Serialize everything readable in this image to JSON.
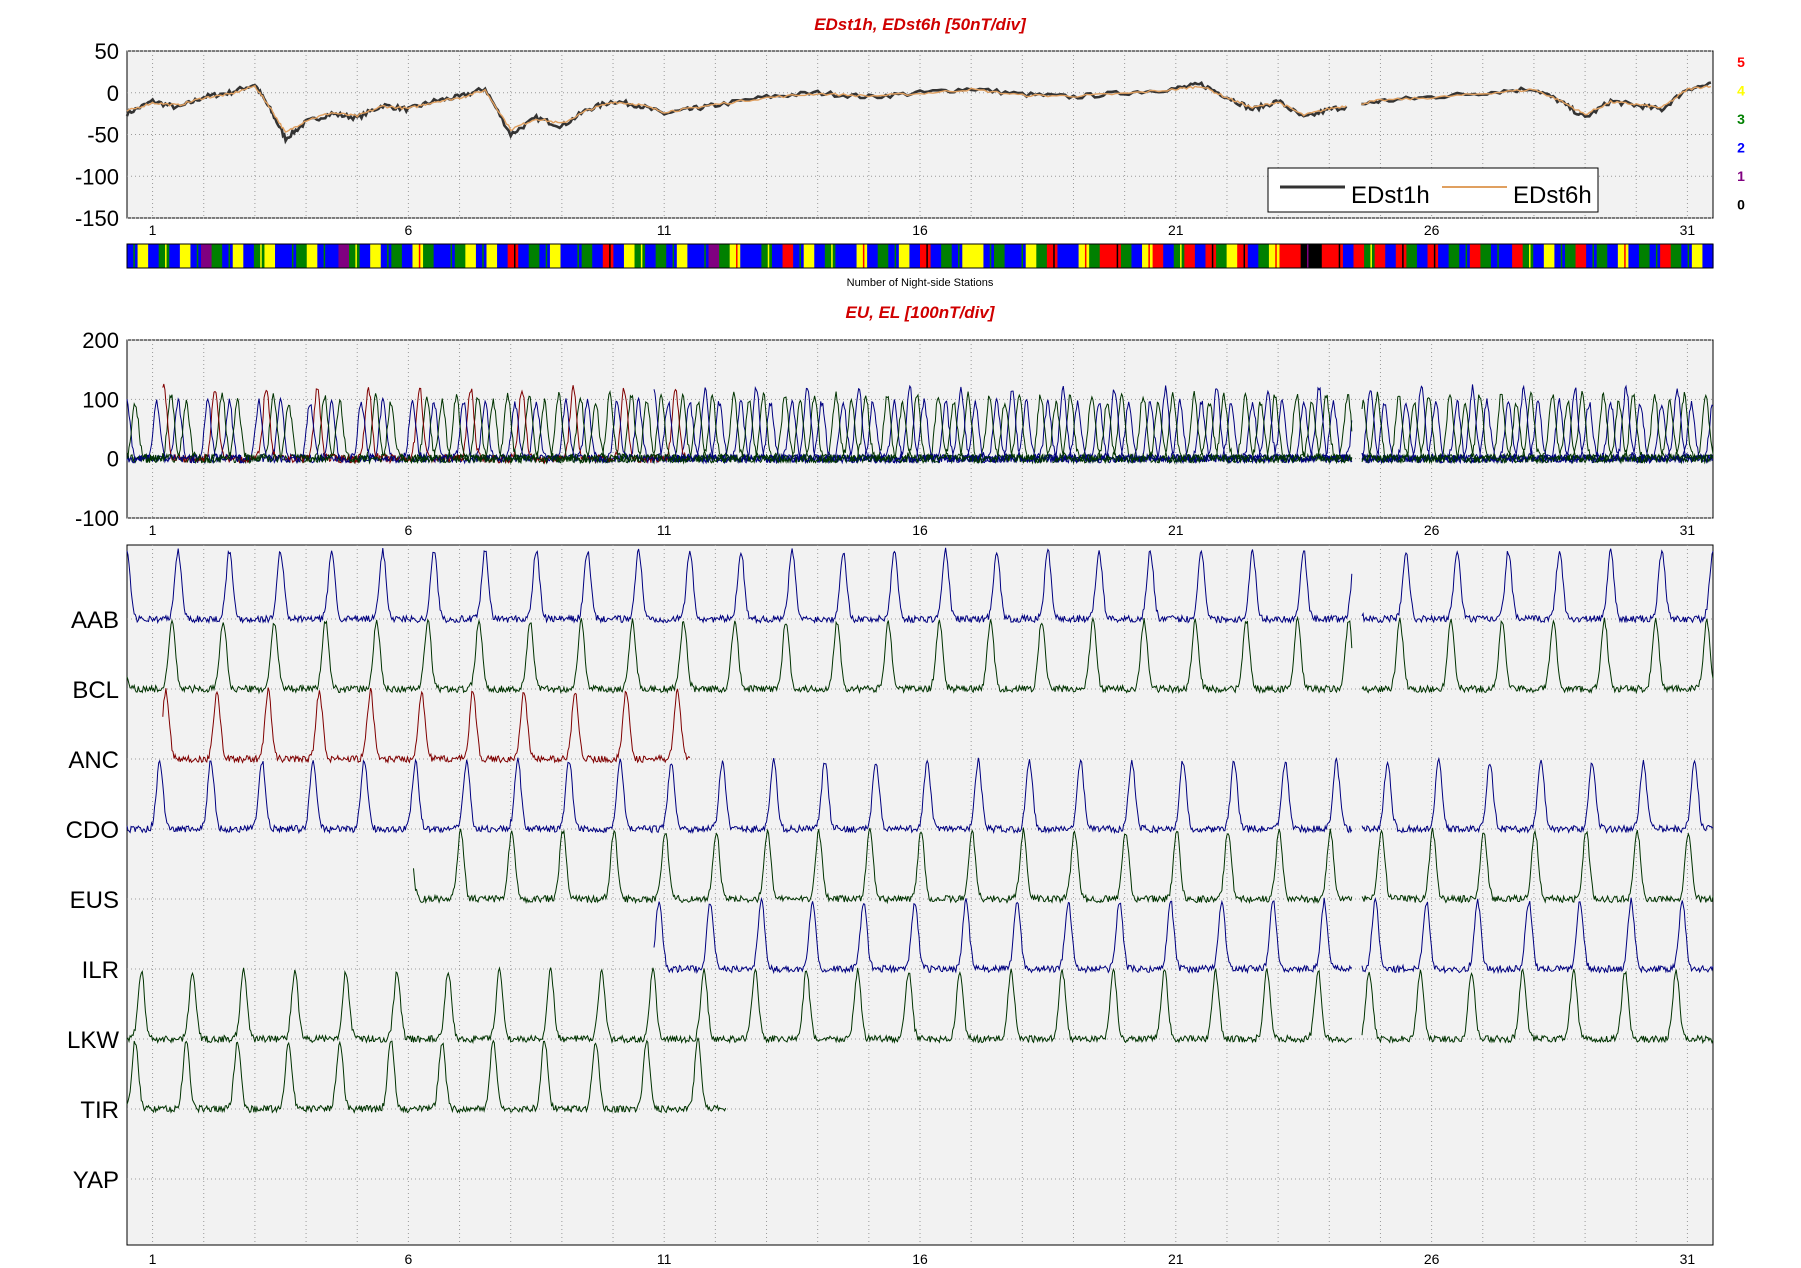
{
  "chart_data": [
    {
      "type": "line",
      "title": "EDst1h, EDst6h [50nT/div]",
      "ylim": [
        -150,
        50
      ],
      "yticks": [
        50,
        0,
        -50,
        -100,
        -150
      ],
      "xticks": [
        1,
        6,
        11,
        16,
        21,
        26,
        31
      ],
      "xlim": [
        0.5,
        31.5
      ],
      "grid": true,
      "legend": {
        "position": "bottom-right",
        "entries": [
          "EDst1h",
          "EDst6h"
        ]
      },
      "series": [
        {
          "name": "EDst1h",
          "color": "#333333",
          "x": [
            0.5,
            1,
            1.5,
            2,
            2.5,
            3,
            3.3,
            3.6,
            4,
            4.5,
            5,
            5.5,
            6,
            6.5,
            7,
            7.5,
            8,
            8.5,
            9,
            9.5,
            10,
            10.5,
            11,
            11.5,
            12,
            13,
            14,
            15,
            16,
            17,
            18,
            19,
            20,
            21,
            21.5,
            22,
            22.5,
            23,
            23.5,
            24,
            24.5,
            25,
            26,
            27,
            28,
            28.5,
            29,
            29.5,
            30,
            30.5,
            31,
            31.5
          ],
          "y": [
            -25,
            -10,
            -18,
            -5,
            0,
            10,
            -20,
            -55,
            -35,
            -25,
            -30,
            -15,
            -20,
            -10,
            -5,
            5,
            -50,
            -30,
            -40,
            -20,
            -10,
            -15,
            -25,
            -20,
            -15,
            -5,
            0,
            -5,
            0,
            5,
            -2,
            -5,
            0,
            5,
            10,
            -5,
            -20,
            -10,
            -30,
            -20,
            -15,
            -10,
            -5,
            0,
            5,
            -10,
            -30,
            -10,
            -15,
            -20,
            5,
            10
          ]
        },
        {
          "name": "EDst6h",
          "color": "#e0a060",
          "x": [
            0.5,
            1,
            1.5,
            2,
            2.5,
            3,
            3.3,
            3.6,
            4,
            4.5,
            5,
            5.5,
            6,
            6.5,
            7,
            7.5,
            8,
            8.5,
            9,
            9.5,
            10,
            10.5,
            11,
            11.5,
            12,
            13,
            14,
            15,
            16,
            17,
            18,
            19,
            20,
            21,
            21.5,
            22,
            22.5,
            23,
            23.5,
            24,
            24.5,
            25,
            26,
            27,
            28,
            28.5,
            29,
            29.5,
            30,
            30.5,
            31,
            31.5
          ],
          "y": [
            -22,
            -12,
            -15,
            -6,
            -2,
            8,
            -18,
            -48,
            -33,
            -24,
            -28,
            -16,
            -19,
            -11,
            -6,
            3,
            -44,
            -31,
            -37,
            -21,
            -11,
            -14,
            -23,
            -19,
            -14,
            -6,
            -1,
            -4,
            -1,
            4,
            -3,
            -4,
            -1,
            4,
            8,
            -6,
            -18,
            -11,
            -27,
            -19,
            -14,
            -9,
            -6,
            -1,
            4,
            -9,
            -26,
            -11,
            -14,
            -18,
            4,
            9
          ]
        }
      ]
    },
    {
      "type": "heatmap",
      "title": "Number of Night-side Stations",
      "colorscale": [
        {
          "value": 5,
          "color": "#ff0000"
        },
        {
          "value": 4,
          "color": "#ffff00"
        },
        {
          "value": 3,
          "color": "#008000"
        },
        {
          "value": 2,
          "color": "#0000ff"
        },
        {
          "value": 1,
          "color": "#800080"
        },
        {
          "value": 0,
          "color": "#000000"
        }
      ],
      "values": [
        2,
        4,
        2,
        3,
        2,
        4,
        2,
        1,
        3,
        2,
        4,
        2,
        3,
        4,
        2,
        2,
        3,
        4,
        2,
        2,
        1,
        3,
        2,
        4,
        2,
        3,
        2,
        4,
        3,
        2,
        2,
        3,
        4,
        2,
        4,
        2,
        5,
        2,
        3,
        2,
        4,
        2,
        2,
        3,
        2,
        5,
        2,
        4,
        3,
        2,
        3,
        2,
        4,
        2,
        2,
        1,
        3,
        4,
        2,
        2,
        3,
        2,
        5,
        2,
        4,
        2,
        3,
        2,
        2,
        4,
        2,
        3,
        2,
        4,
        2,
        5,
        2,
        3,
        2,
        4,
        4,
        2,
        3,
        2,
        2,
        4,
        3,
        5,
        2,
        2,
        4,
        3,
        5,
        5,
        3,
        2,
        4,
        5,
        2,
        3,
        5,
        2,
        5,
        3,
        4,
        5,
        2,
        3,
        4,
        5,
        5,
        0,
        0,
        5,
        5,
        2,
        5,
        3,
        5,
        2,
        5,
        3,
        2,
        5,
        2,
        3,
        2,
        5,
        3,
        2,
        2,
        5,
        3,
        2,
        4,
        2,
        3,
        5,
        2,
        3,
        2,
        4,
        2,
        3,
        2,
        5,
        3,
        2,
        4,
        2
      ]
    },
    {
      "type": "line",
      "title": "EU, EL   [100nT/div]",
      "ylim": [
        -100,
        200
      ],
      "yticks": [
        200,
        100,
        0,
        -100
      ],
      "xticks": [
        1,
        6,
        11,
        16,
        21,
        26,
        31
      ],
      "xlim": [
        0.5,
        31.5
      ],
      "grid": true,
      "series": [
        {
          "name": "AAB",
          "color": "#000080"
        },
        {
          "name": "BCL",
          "color": "#003300"
        },
        {
          "name": "ANC",
          "color": "#800000"
        },
        {
          "name": "CDO",
          "color": "#000080"
        },
        {
          "name": "EUS",
          "color": "#003300"
        },
        {
          "name": "ILR",
          "color": "#000080"
        },
        {
          "name": "LKW",
          "color": "#003300"
        }
      ]
    },
    {
      "type": "line",
      "xticks": [
        1,
        6,
        11,
        16,
        21,
        26,
        31
      ],
      "xlim": [
        0.5,
        31.5
      ],
      "grid": true,
      "categories": [
        "AAB",
        "BCL",
        "ANC",
        "CDO",
        "EUS",
        "ILR",
        "LKW",
        "TIR",
        "YAP"
      ],
      "series": [
        {
          "name": "AAB",
          "color": "#000080",
          "range": [
            0.5,
            31.5
          ]
        },
        {
          "name": "BCL",
          "color": "#003300",
          "range": [
            0.5,
            31.5
          ]
        },
        {
          "name": "ANC",
          "color": "#800000",
          "range": [
            1.2,
            11.5
          ]
        },
        {
          "name": "CDO",
          "color": "#000080",
          "range": [
            0.5,
            31.5
          ]
        },
        {
          "name": "EUS",
          "color": "#003300",
          "range": [
            6.1,
            31.5
          ]
        },
        {
          "name": "ILR",
          "color": "#000080",
          "range": [
            10.8,
            31.5
          ]
        },
        {
          "name": "LKW",
          "color": "#003300",
          "range": [
            0.5,
            31.5
          ]
        },
        {
          "name": "TIR",
          "color": "#003300",
          "range": [
            0.5,
            12.2
          ]
        },
        {
          "name": "YAP",
          "color": "#000080",
          "range": []
        }
      ]
    }
  ]
}
